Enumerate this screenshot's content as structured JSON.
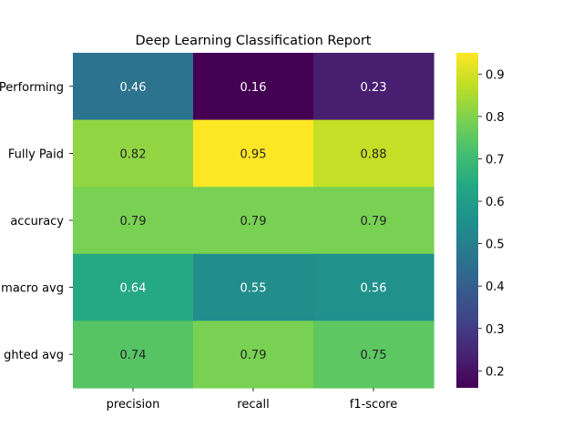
{
  "chart_data": {
    "type": "heatmap",
    "title": "Deep Learning Classification Report",
    "xlabel": "",
    "ylabel": "",
    "colormap": "viridis",
    "columns": [
      "precision",
      "recall",
      "f1-score"
    ],
    "rows": [
      "Performing",
      "Fully Paid",
      "accuracy",
      "macro avg",
      "ghted avg"
    ],
    "values": [
      [
        0.46,
        0.16,
        0.23
      ],
      [
        0.82,
        0.95,
        0.88
      ],
      [
        0.79,
        0.79,
        0.79
      ],
      [
        0.64,
        0.55,
        0.56
      ],
      [
        0.74,
        0.79,
        0.75
      ]
    ],
    "value_labels": [
      [
        "0.46",
        "0.16",
        "0.23"
      ],
      [
        "0.82",
        "0.95",
        "0.88"
      ],
      [
        "0.79",
        "0.79",
        "0.79"
      ],
      [
        "0.64",
        "0.55",
        "0.56"
      ],
      [
        "0.74",
        "0.79",
        "0.75"
      ]
    ],
    "colorbar": {
      "range": [
        0.16,
        0.95
      ],
      "ticks": [
        "0.2",
        "0.3",
        "0.4",
        "0.5",
        "0.6",
        "0.7",
        "0.8",
        "0.9"
      ]
    },
    "grid": false,
    "legend": "colorbar-right"
  }
}
